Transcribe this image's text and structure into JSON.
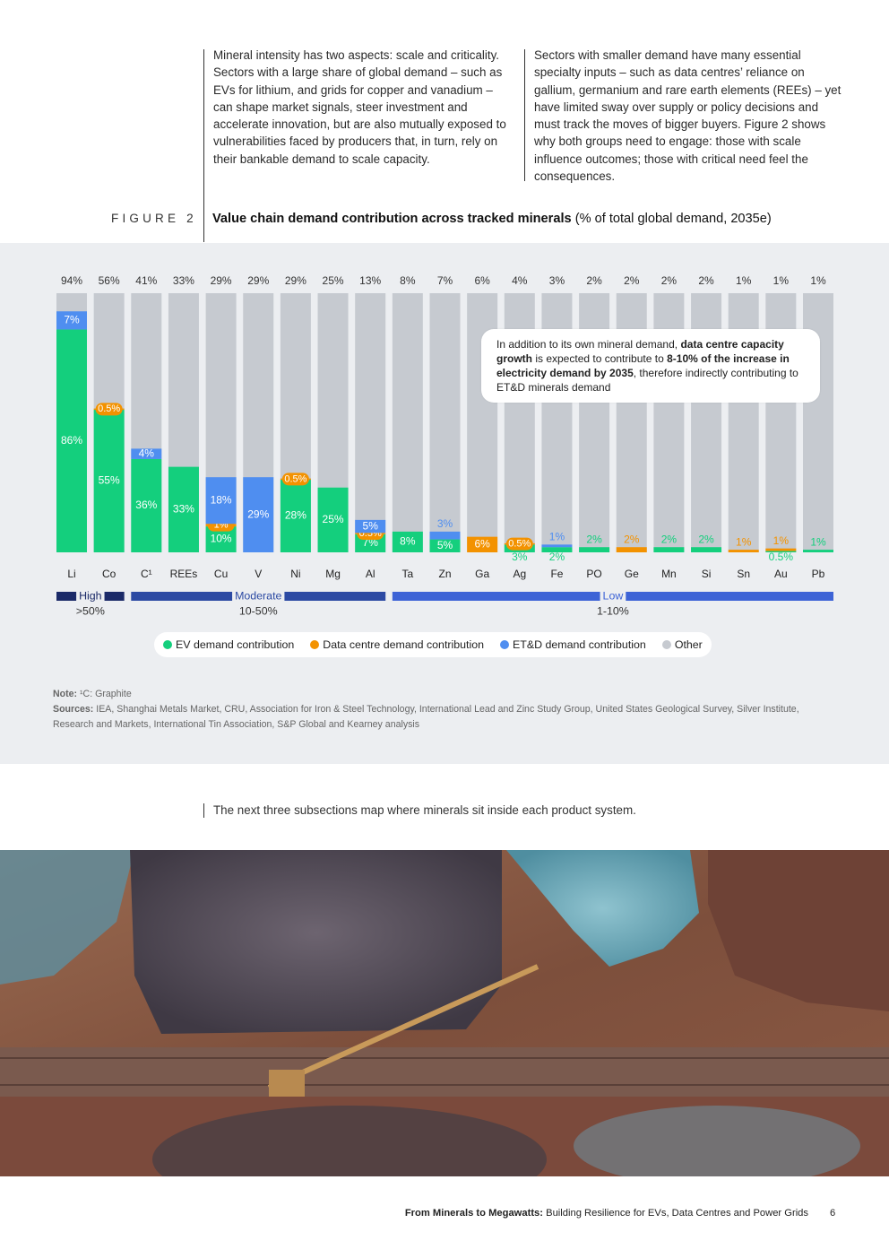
{
  "text_columns": [
    "Mineral intensity has two aspects: scale and criticality. Sectors with a large share of global demand – such as EVs for lithium, and grids for copper and vanadium – can shape market signals, steer investment and accelerate innovation, but are also mutually exposed to vulnerabilities faced by producers that, in turn, rely on their bankable demand to scale capacity.",
    "Sectors with smaller demand have many essential specialty inputs – such as data centres’ reliance on gallium, germanium and rare earth elements (REEs) – yet have limited sway over supply or policy decisions and must track the moves of bigger buyers. Figure 2 shows why both groups need to engage: those with scale influence outcomes; those with critical need feel the consequences."
  ],
  "figure": {
    "label": "FIGURE 2",
    "title_bold": "Value chain demand contribution across tracked minerals",
    "title_rest": " (% of total global demand, 2035e)"
  },
  "chart_data": {
    "type": "stacked_bar",
    "categories": [
      "Li",
      "Co",
      "C¹",
      "REEs",
      "Cu",
      "V",
      "Ni",
      "Mg",
      "Al",
      "Ta",
      "Zn",
      "Ga",
      "Ag",
      "Fe",
      "PO",
      "Ge",
      "Mn",
      "Si",
      "Sn",
      "Au",
      "Pb"
    ],
    "ylim": [
      0,
      100
    ],
    "totals": [
      94,
      56,
      41,
      33,
      29,
      29,
      29,
      25,
      13,
      8,
      7,
      6,
      4,
      3,
      2,
      2,
      2,
      2,
      1,
      1,
      1
    ],
    "total_labels": [
      "94%",
      "56%",
      "41%",
      "33%",
      "29%",
      "29%",
      "29%",
      "25%",
      "13%",
      "8%",
      "7%",
      "6%",
      "4%",
      "3%",
      "2%",
      "2%",
      "2%",
      "2%",
      "1%",
      "1%",
      "1%"
    ],
    "series": [
      {
        "name": "EV demand contribution",
        "color": "#14cf7d",
        "values": [
          86,
          55,
          36,
          33,
          10,
          null,
          28,
          25,
          7,
          8,
          5,
          null,
          3,
          2,
          2,
          null,
          2,
          2,
          null,
          0.5,
          1
        ],
        "value_labels": [
          "86%",
          "55%",
          "36%",
          "33%",
          "10%",
          null,
          "28%",
          "25%",
          "7%",
          "8%",
          "5%",
          null,
          "3%",
          "2%",
          "2%",
          null,
          "2%",
          "2%",
          null,
          "0.5%",
          "1%"
        ]
      },
      {
        "name": "Data centre demand contribution",
        "color": "#f39200",
        "values": [
          null,
          0.5,
          null,
          null,
          1,
          null,
          0.5,
          null,
          0.5,
          null,
          null,
          6,
          0.5,
          null,
          null,
          2,
          null,
          null,
          1,
          1,
          null
        ],
        "value_labels": [
          null,
          "0.5%",
          null,
          null,
          "1%",
          null,
          "0.5%",
          null,
          "0.5%",
          null,
          null,
          "6%",
          "0.5%",
          null,
          null,
          "2%",
          null,
          null,
          "1%",
          "1%",
          null
        ]
      },
      {
        "name": "ET&D demand contribution",
        "color": "#4f8ef0",
        "values": [
          7,
          null,
          4,
          null,
          18,
          29,
          null,
          null,
          5,
          null,
          3,
          null,
          null,
          1,
          null,
          null,
          null,
          null,
          null,
          null,
          null
        ],
        "value_labels": [
          "7%",
          null,
          "4%",
          null,
          "18%",
          "29%",
          null,
          null,
          "5%",
          null,
          "3%",
          null,
          null,
          "1%",
          null,
          null,
          null,
          null,
          null,
          null,
          null
        ]
      }
    ],
    "other": {
      "name": "Other",
      "color": "#c6cad0"
    },
    "groups": [
      {
        "label": "High",
        "range": ">50%",
        "color": "#1b2a68"
      },
      {
        "label": "Moderate",
        "range": "10-50%",
        "color": "#2c4aa3"
      },
      {
        "label": "Low",
        "range": "1-10%",
        "color": "#3d63d6"
      }
    ],
    "annotation": [
      "In addition to its own mineral demand, ",
      "data centre capacity growth",
      " is expected to contribute to ",
      "8-10% of the increase in electricity demand by 2035",
      ", therefore indirectly contributing to ET&D minerals demand"
    ]
  },
  "note_label": "Note:",
  "note": "¹C: Graphite",
  "sources_label": "Sources:",
  "sources": "IEA, Shanghai Metals Market, CRU, Association for Iron & Steel Technology, International Lead and Zinc Study Group, United States Geological Survey, Silver Institute, Research and Markets, International Tin Association, S&P Global and Kearney analysis",
  "caption": "The next three subsections map where minerals sit inside each product system.",
  "footer": {
    "title_bold": "From Minerals to Megawatts:",
    "title_rest": " Building Resilience for EVs, Data Centres and Power Grids",
    "page": "6"
  }
}
